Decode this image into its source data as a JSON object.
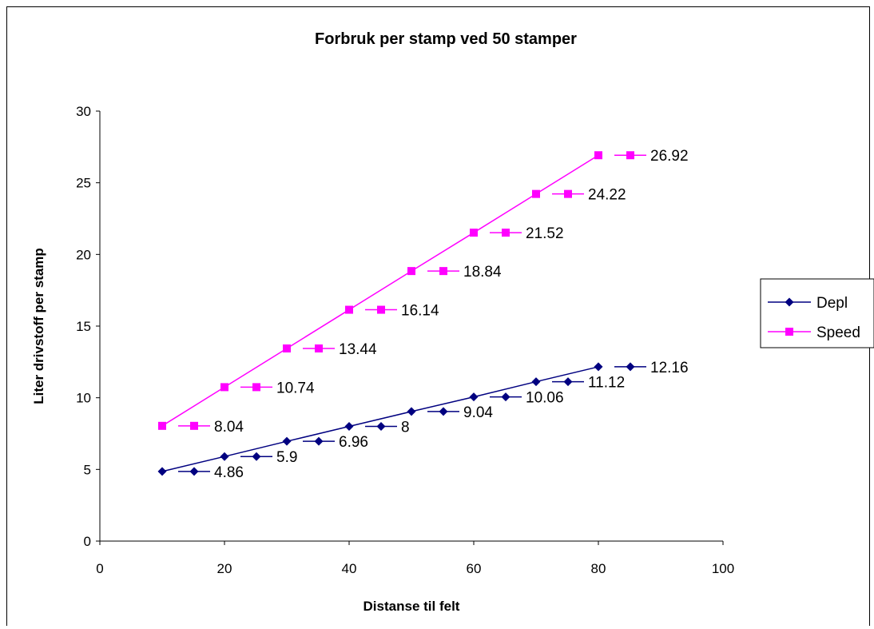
{
  "chart_data": {
    "type": "line",
    "title": "Forbruk per stamp ved 50 stamper",
    "xlabel": "Distanse til felt",
    "ylabel": "Liter drivstoff per stamp",
    "xlim": [
      0,
      100
    ],
    "ylim": [
      0,
      30
    ],
    "x_ticks": [
      "0",
      "20",
      "40",
      "60",
      "80",
      "100"
    ],
    "y_ticks": [
      "0",
      "5",
      "10",
      "15",
      "20",
      "25",
      "30"
    ],
    "x": [
      10,
      20,
      30,
      40,
      50,
      60,
      70,
      80
    ],
    "grid": false,
    "legend_position": "right",
    "series": [
      {
        "name": "Depl",
        "color": "#000080",
        "marker": "diamond",
        "values": [
          4.86,
          5.9,
          6.96,
          8,
          9.04,
          10.06,
          11.12,
          12.16
        ],
        "labels": [
          "4.86",
          "5.9",
          "6.96",
          "8",
          "9.04",
          "10.06",
          "11.12",
          "12.16"
        ]
      },
      {
        "name": "Speed",
        "color": "#FF00FF",
        "marker": "square",
        "values": [
          8.04,
          10.74,
          13.44,
          16.14,
          18.84,
          21.52,
          24.22,
          26.92
        ],
        "labels": [
          "8.04",
          "10.74",
          "13.44",
          "16.14",
          "18.84",
          "21.52",
          "24.22",
          "26.92"
        ]
      }
    ]
  }
}
